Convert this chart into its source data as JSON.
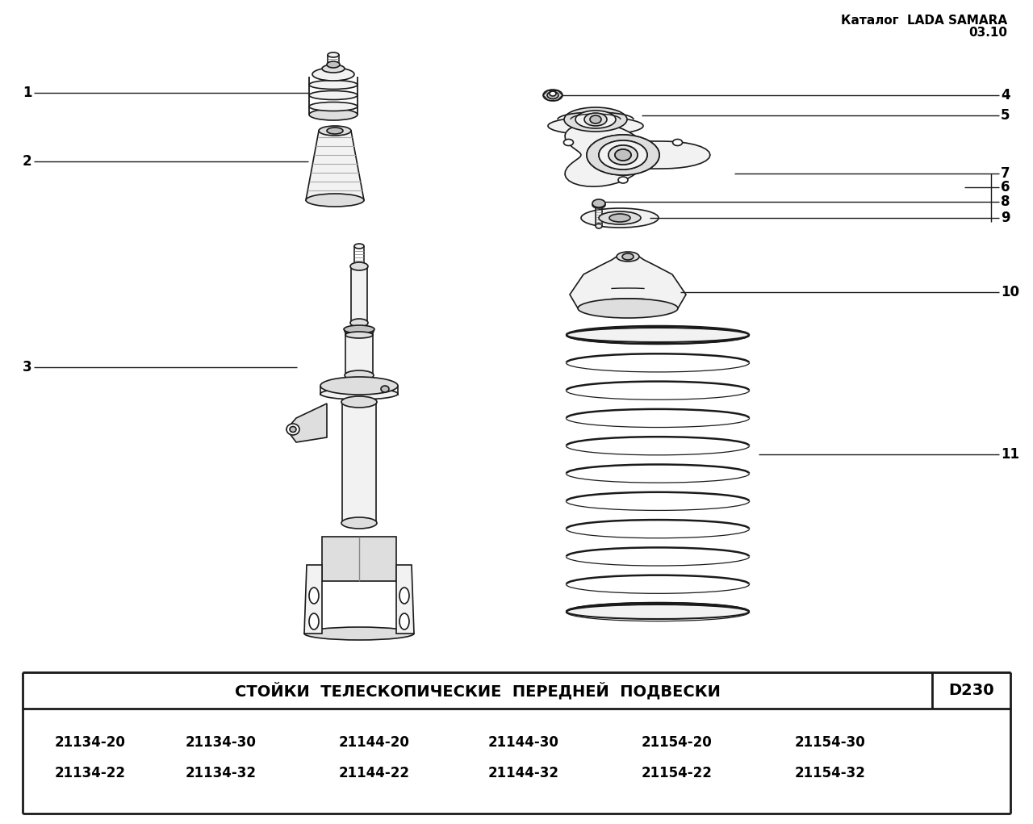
{
  "title_line1": "Каталог  LADA SAMARA",
  "title_line2": "03.10",
  "table_title": "СТОЙКИ  ТЕЛЕСКОПИЧЕСКИЕ  ПЕРЕДНЕЙ  ПОДВЕСКИ",
  "table_code": "D230",
  "part_numbers_row1": [
    "21134-20",
    "21134-30",
    "21144-20",
    "21144-30",
    "21154-20",
    "21154-30"
  ],
  "part_numbers_row2": [
    "21134-22",
    "21134-32",
    "21144-22",
    "21144-32",
    "21154-22",
    "21154-32"
  ],
  "bg_color": "#ffffff",
  "line_color": "#1a1a1a",
  "text_color": "#000000",
  "fill_light": "#f2f2f2",
  "fill_mid": "#dedede",
  "fill_dark": "#c0c0c0"
}
